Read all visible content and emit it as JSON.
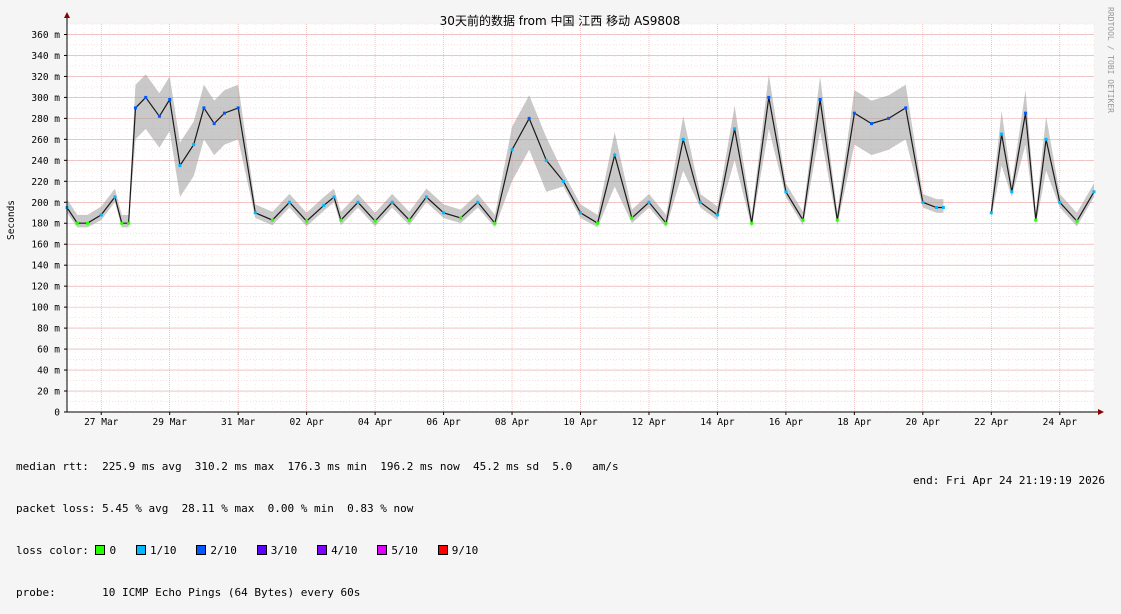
{
  "chart_data": {
    "type": "area",
    "title": "30天前的数据 from 中国 江西 移动 AS9808",
    "ylabel": "Seconds",
    "ylim": [
      0,
      0.37
    ],
    "y_ticks": [
      "0",
      "20 m",
      "40 m",
      "60 m",
      "80 m",
      "100 m",
      "120 m",
      "140 m",
      "160 m",
      "180 m",
      "200 m",
      "220 m",
      "240 m",
      "260 m",
      "280 m",
      "300 m",
      "320 m",
      "340 m",
      "360 m"
    ],
    "x_ticks": [
      "27 Mar",
      "29 Mar",
      "31 Mar",
      "02 Apr",
      "04 Apr",
      "06 Apr",
      "08 Apr",
      "10 Apr",
      "12 Apr",
      "14 Apr",
      "16 Apr",
      "18 Apr",
      "20 Apr",
      "22 Apr",
      "24 Apr"
    ],
    "x_range_days": [
      0,
      30
    ],
    "grid": true,
    "vertical_label": "RRDTOOL / TOBI OETIKER",
    "series": [
      {
        "name": "median rtt",
        "unit": "ms",
        "x_day": [
          0,
          0.3,
          0.6,
          1.0,
          1.4,
          1.6,
          1.8,
          2.0,
          2.3,
          2.7,
          3.0,
          3.3,
          3.7,
          4.0,
          4.3,
          4.6,
          5.0,
          5.5,
          6.0,
          6.5,
          7.0,
          7.5,
          7.8,
          8.0,
          8.5,
          9.0,
          9.5,
          10.0,
          10.5,
          11.0,
          11.5,
          12.0,
          12.5,
          13.0,
          13.5,
          14.0,
          14.5,
          15.0,
          15.5,
          16.0,
          16.5,
          17.0,
          17.5,
          18.0,
          18.5,
          19.0,
          19.5,
          20.0,
          20.5,
          21.0,
          21.5,
          22.0,
          22.5,
          23.0,
          23.5,
          24.0,
          24.5,
          25.0,
          25.4,
          25.6,
          27.0,
          27.3,
          27.6,
          28.0,
          28.3,
          28.6,
          29.0,
          29.5,
          30.0
        ],
        "values_ms": [
          195,
          180,
          180,
          188,
          205,
          180,
          180,
          290,
          300,
          282,
          298,
          235,
          255,
          290,
          275,
          285,
          290,
          190,
          183,
          200,
          182,
          197,
          205,
          183,
          200,
          182,
          200,
          183,
          205,
          190,
          185,
          200,
          180,
          250,
          280,
          240,
          220,
          190,
          180,
          245,
          185,
          200,
          180,
          260,
          200,
          188,
          270,
          180,
          300,
          210,
          183,
          298,
          183,
          285,
          275,
          280,
          290,
          200,
          195,
          195,
          190,
          265,
          210,
          285,
          183,
          260,
          200,
          182,
          210
        ],
        "gaps_after_day": [
          25.6
        ]
      }
    ],
    "loss_color_legend": [
      {
        "label": "0",
        "color": "#26ff00"
      },
      {
        "label": "1/10",
        "color": "#00b8ff"
      },
      {
        "label": "2/10",
        "color": "#0059ff"
      },
      {
        "label": "3/10",
        "color": "#5e00ff"
      },
      {
        "label": "4/10",
        "color": "#7e00ff"
      },
      {
        "label": "5/10",
        "color": "#dd00ff"
      },
      {
        "label": "9/10",
        "color": "#ff0000"
      }
    ]
  },
  "stats": {
    "median_line": "median rtt:  225.9 ms avg  310.2 ms max  176.3 ms min  196.2 ms now  45.2 ms sd  5.0   am/s",
    "loss_line": "packet loss: 5.45 % avg  28.11 % max  0.00 % min  0.83 % now",
    "loss_color_label": "loss color:",
    "probe_line": "probe:       10 ICMP Echo Pings (64 Bytes) every 60s",
    "end_line": "end: Fri Apr 24 21:19:19 2026"
  }
}
